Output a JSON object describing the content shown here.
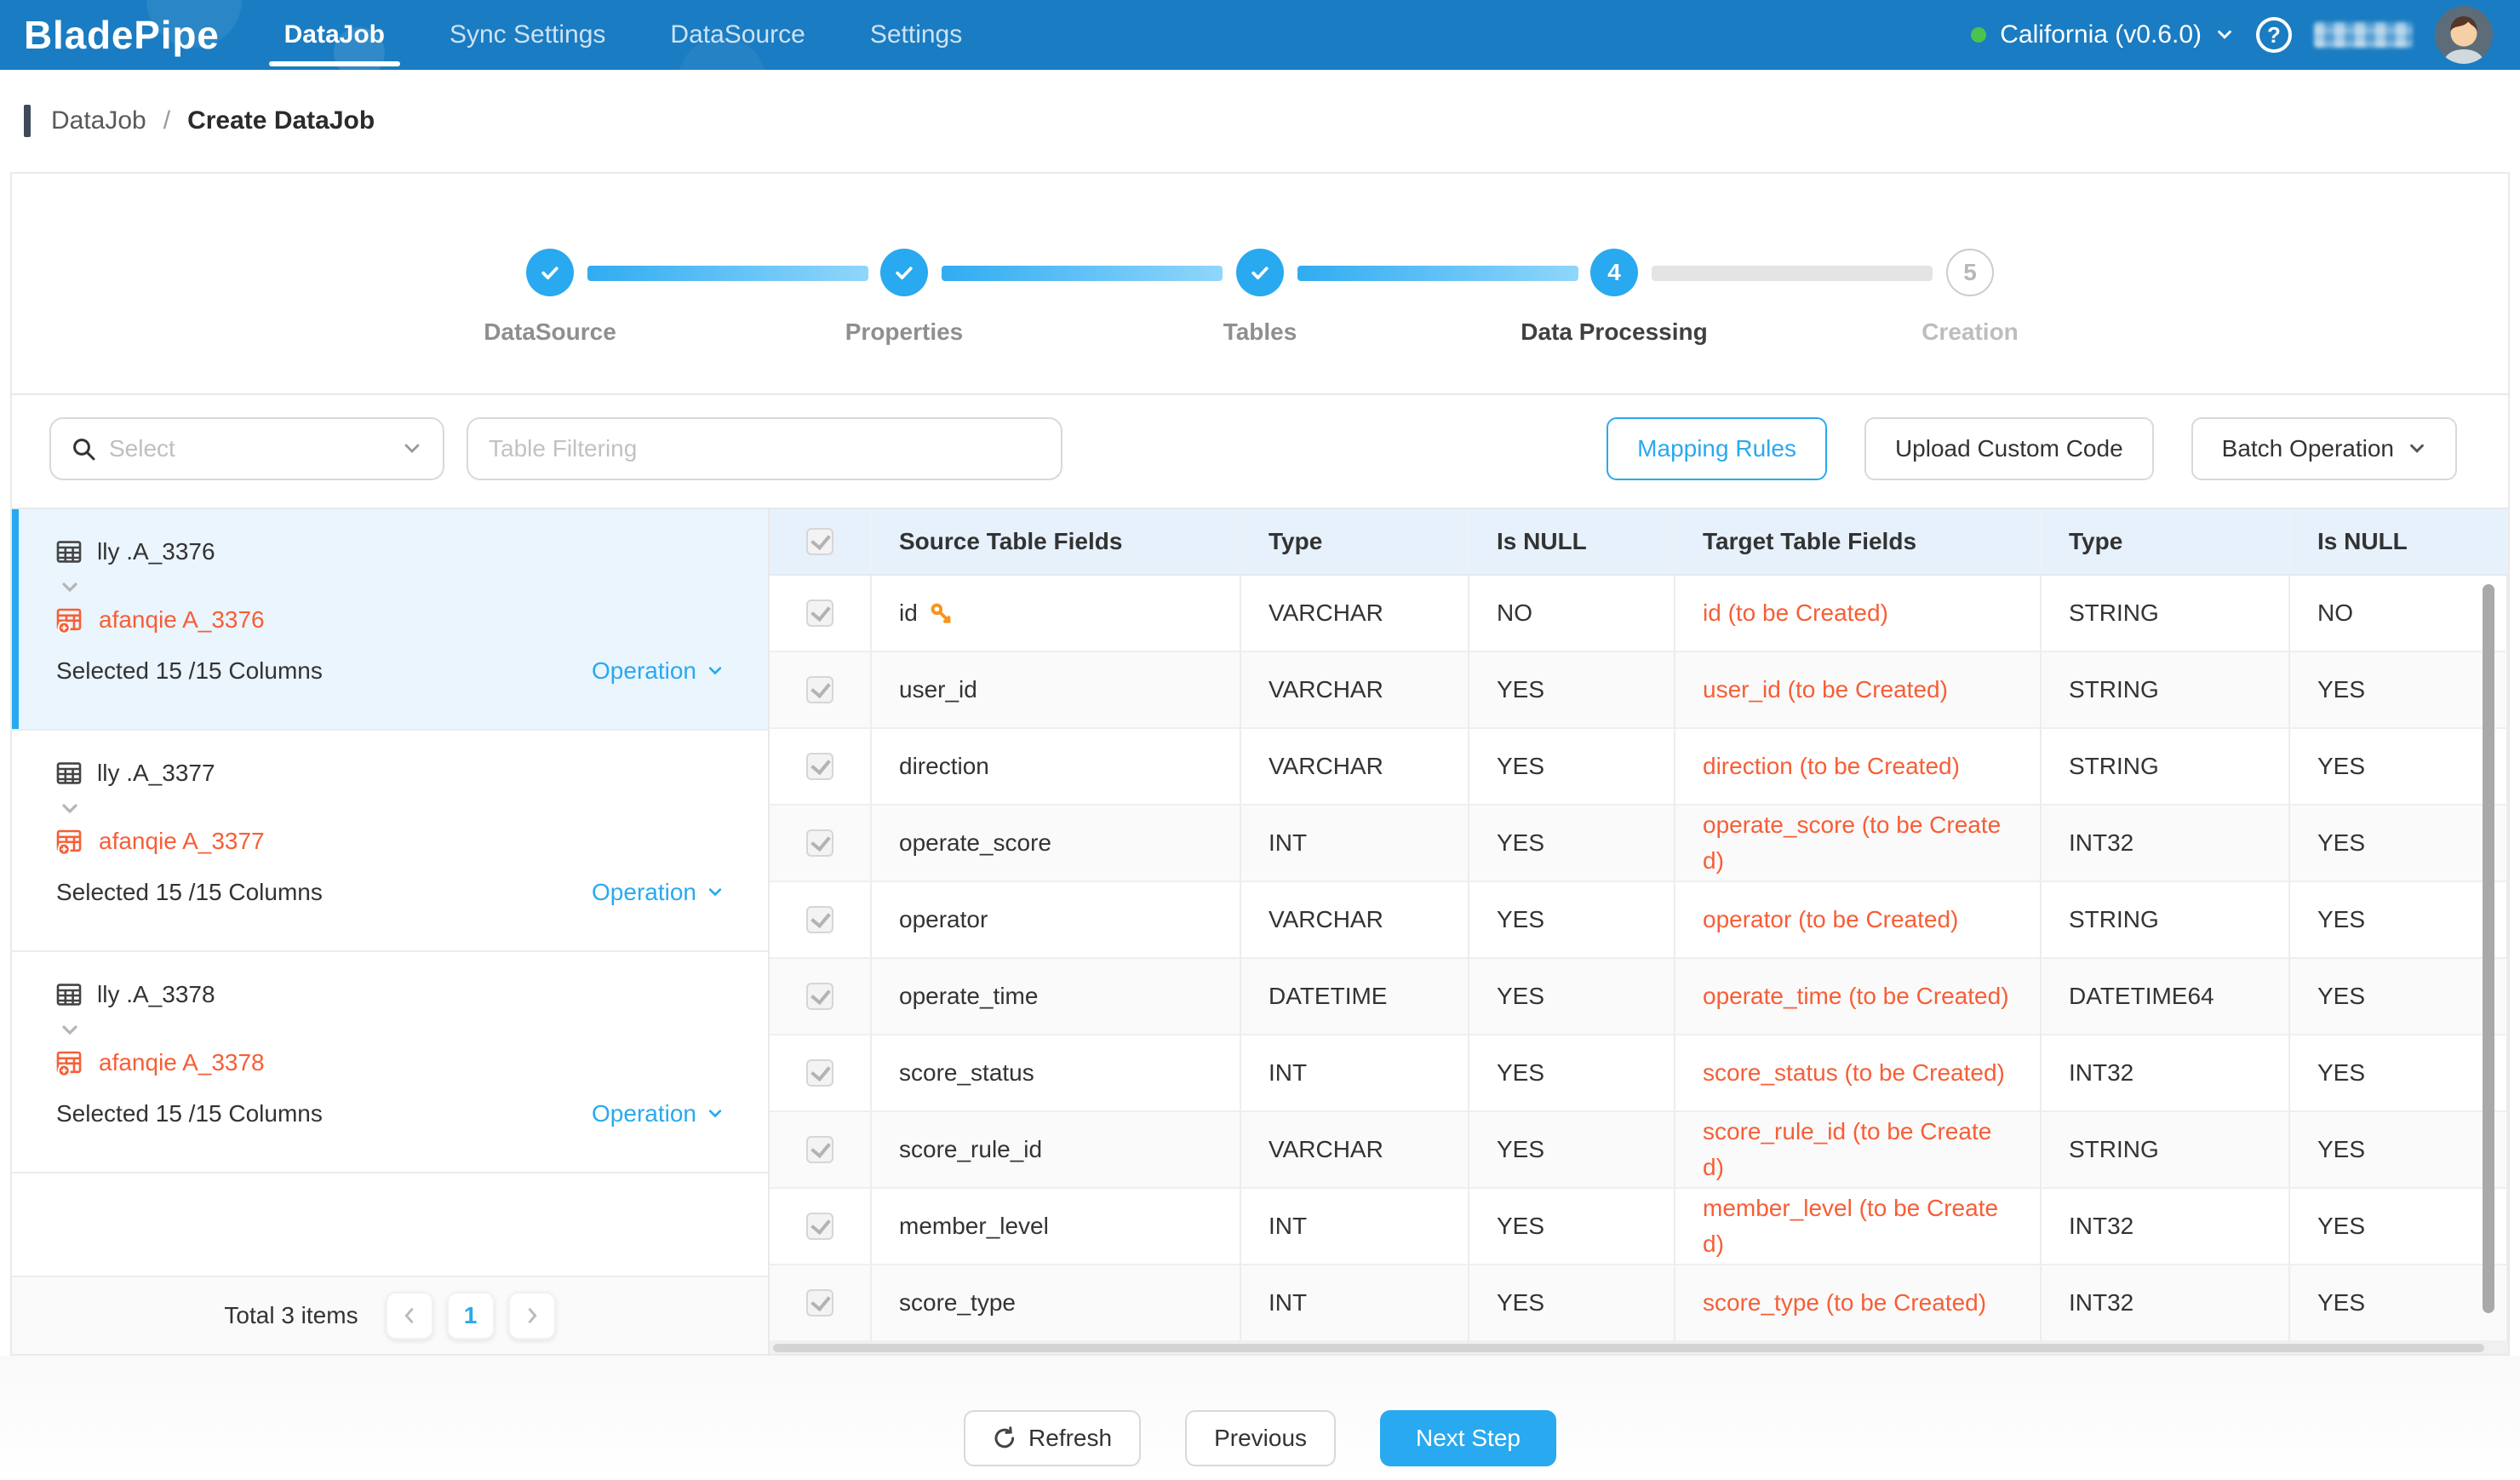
{
  "colors": {
    "navbar_blue": "#1a7cc2",
    "accent_blue": "#29a9ef",
    "orange": "#f75e36",
    "key_orange": "#f7941e",
    "env_green": "#4dc34d",
    "header_bg": "#e6f1fc",
    "selected_card_bg": "#eaf5fd"
  },
  "nav": {
    "brand": "BladePipe",
    "items": [
      {
        "label": "DataJob",
        "active": true
      },
      {
        "label": "Sync Settings",
        "active": false
      },
      {
        "label": "DataSource",
        "active": false
      },
      {
        "label": "Settings",
        "active": false
      }
    ],
    "env_label": "California (v0.6.0)",
    "help_glyph": "?"
  },
  "breadcrumb": {
    "items": [
      "DataJob",
      "Create DataJob"
    ],
    "separator": "/"
  },
  "stepper": {
    "steps": [
      {
        "label": "DataSource",
        "state": "done"
      },
      {
        "label": "Properties",
        "state": "done"
      },
      {
        "label": "Tables",
        "state": "done"
      },
      {
        "label": "Data Processing",
        "state": "active",
        "number": "4"
      },
      {
        "label": "Creation",
        "state": "pending",
        "number": "5"
      }
    ]
  },
  "toolbar": {
    "select_placeholder": "Select",
    "filter_placeholder": "Table Filtering",
    "mapping_rules": "Mapping Rules",
    "upload_custom_code": "Upload Custom Code",
    "batch_operation": "Batch Operation"
  },
  "sidebar": {
    "tables": [
      {
        "source": "lly .A_3376",
        "target": "afanqie A_3376",
        "selected": "Selected 15 /15 Columns",
        "operation": "Operation",
        "selected_card": true
      },
      {
        "source": "lly .A_3377",
        "target": "afanqie A_3377",
        "selected": "Selected 15 /15 Columns",
        "operation": "Operation",
        "selected_card": false
      },
      {
        "source": "lly .A_3378",
        "target": "afanqie A_3378",
        "selected": "Selected 15 /15 Columns",
        "operation": "Operation",
        "selected_card": false
      }
    ],
    "footer_total": "Total 3 items",
    "page": "1"
  },
  "table": {
    "headers": [
      "Source Table Fields",
      "Type",
      "Is NULL",
      "Target Table Fields",
      "Type",
      "Is NULL"
    ],
    "rows": [
      {
        "field": "id",
        "key": true,
        "type": "VARCHAR",
        "is_null": "NO",
        "target": "id (to be Created)",
        "target_type": "STRING",
        "target_null": "NO"
      },
      {
        "field": "user_id",
        "key": false,
        "type": "VARCHAR",
        "is_null": "YES",
        "target": "user_id (to be Created)",
        "target_type": "STRING",
        "target_null": "YES"
      },
      {
        "field": "direction",
        "key": false,
        "type": "VARCHAR",
        "is_null": "YES",
        "target": "direction (to be Created)",
        "target_type": "STRING",
        "target_null": "YES"
      },
      {
        "field": "operate_score",
        "key": false,
        "type": "INT",
        "is_null": "YES",
        "target": "operate_score (to be Created)",
        "target_type": "INT32",
        "target_null": "YES"
      },
      {
        "field": "operator",
        "key": false,
        "type": "VARCHAR",
        "is_null": "YES",
        "target": "operator (to be Created)",
        "target_type": "STRING",
        "target_null": "YES"
      },
      {
        "field": "operate_time",
        "key": false,
        "type": "DATETIME",
        "is_null": "YES",
        "target": "operate_time (to be Created)",
        "target_type": "DATETIME64",
        "target_null": "YES"
      },
      {
        "field": "score_status",
        "key": false,
        "type": "INT",
        "is_null": "YES",
        "target": "score_status (to be Created)",
        "target_type": "INT32",
        "target_null": "YES"
      },
      {
        "field": "score_rule_id",
        "key": false,
        "type": "VARCHAR",
        "is_null": "YES",
        "target": "score_rule_id (to be Created)",
        "target_type": "STRING",
        "target_null": "YES"
      },
      {
        "field": "member_level",
        "key": false,
        "type": "INT",
        "is_null": "YES",
        "target": "member_level (to be Created)",
        "target_type": "INT32",
        "target_null": "YES"
      },
      {
        "field": "score_type",
        "key": false,
        "type": "INT",
        "is_null": "YES",
        "target": "score_type (to be Created)",
        "target_type": "INT32",
        "target_null": "YES"
      }
    ]
  },
  "footer": {
    "refresh": "Refresh",
    "previous": "Previous",
    "next_step": "Next Step"
  }
}
